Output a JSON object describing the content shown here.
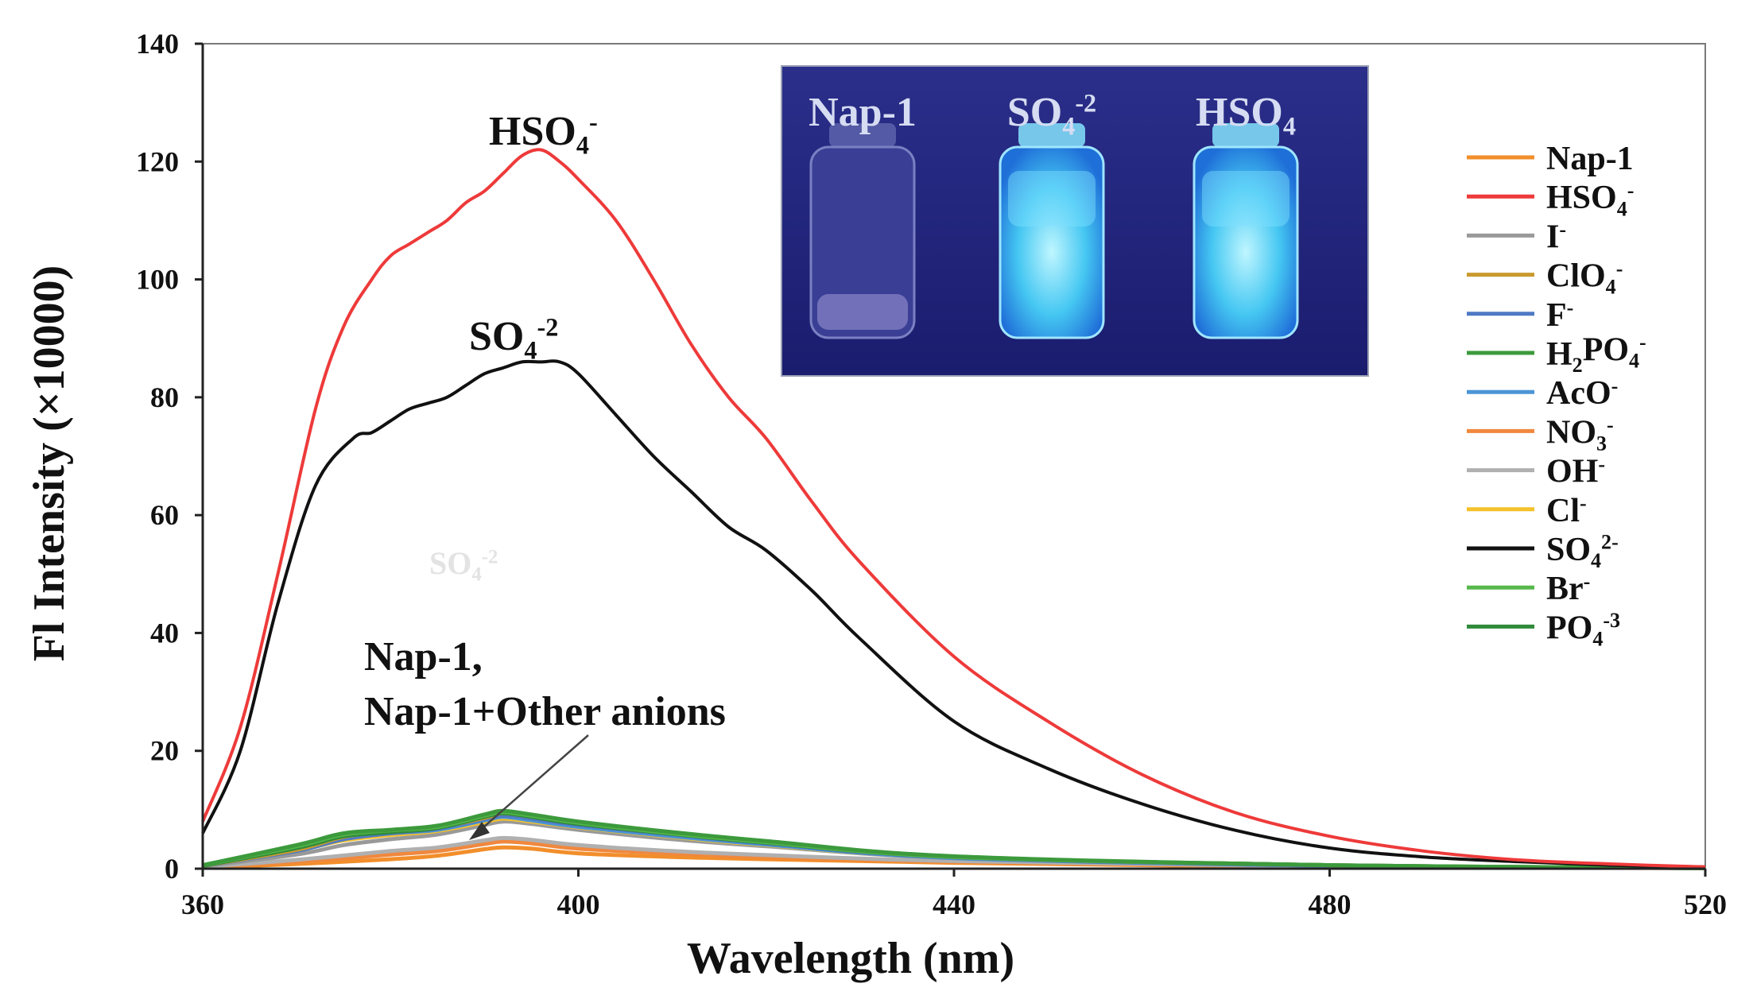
{
  "chart_data": {
    "type": "line",
    "title": "",
    "xlabel": "Wavelength (nm)",
    "ylabel": "Fl Intensity (×10000)",
    "xlim": [
      360,
      520
    ],
    "ylim": [
      0,
      140
    ],
    "xticks": [
      360,
      400,
      440,
      480,
      520
    ],
    "yticks": [
      0,
      20,
      40,
      60,
      80,
      100,
      120,
      140
    ],
    "series": [
      {
        "key": "nap1",
        "base": "Nap-1",
        "sub": "",
        "sup": "",
        "color": "#f28e2b",
        "x": [
          360,
          370,
          380,
          385,
          390,
          392,
          395,
          400,
          410,
          420,
          440,
          480,
          520
        ],
        "y": [
          0.2,
          0.8,
          1.6,
          2.2,
          3.3,
          3.6,
          3.4,
          2.6,
          2.0,
          1.6,
          1.0,
          0.3,
          0.1
        ]
      },
      {
        "key": "hso4",
        "base": "HSO",
        "sub": "4",
        "sup": "-",
        "color": "#ee3a3a",
        "x": [
          360,
          364,
          368,
          372,
          375,
          378,
          380,
          382,
          384,
          386,
          388,
          390,
          392,
          394,
          396,
          398,
          400,
          404,
          408,
          412,
          416,
          420,
          425,
          430,
          440,
          450,
          460,
          470,
          480,
          490,
          500,
          510,
          520
        ],
        "y": [
          8,
          24,
          50,
          78,
          92,
          100,
          104,
          106,
          108,
          110,
          113,
          115,
          118,
          121,
          122,
          120,
          117,
          110,
          100,
          89,
          80,
          73,
          62,
          52,
          36,
          25,
          16,
          9.5,
          5.5,
          3,
          1.5,
          0.8,
          0.3
        ]
      },
      {
        "key": "iodide",
        "base": "I",
        "sub": "",
        "sup": "-",
        "color": "#999999",
        "x": [
          360,
          370,
          375,
          380,
          385,
          390,
          392,
          395,
          400,
          410,
          420,
          440,
          480,
          520
        ],
        "y": [
          0.4,
          2.4,
          4.0,
          5.0,
          5.8,
          7.4,
          8.0,
          7.6,
          6.6,
          5.0,
          3.8,
          1.8,
          0.5,
          0.1
        ]
      },
      {
        "key": "clo4",
        "base": "ClO",
        "sub": "4",
        "sup": "-",
        "color": "#c99a2e",
        "x": [
          360,
          370,
          375,
          380,
          385,
          390,
          392,
          395,
          400,
          410,
          420,
          440,
          480,
          520
        ],
        "y": [
          0.5,
          3.2,
          5.4,
          6.3,
          7.0,
          8.6,
          9.4,
          8.8,
          7.7,
          6.1,
          4.5,
          2.0,
          0.6,
          0.1
        ]
      },
      {
        "key": "fluoride",
        "base": "F",
        "sub": "",
        "sup": "-",
        "color": "#4e79c4",
        "x": [
          360,
          370,
          375,
          380,
          385,
          390,
          392,
          395,
          400,
          410,
          420,
          440,
          480,
          520
        ],
        "y": [
          0.5,
          3.0,
          5.0,
          6.0,
          6.8,
          8.4,
          9.0,
          8.5,
          7.4,
          5.8,
          4.3,
          1.9,
          0.5,
          0.1
        ]
      },
      {
        "key": "h2po4",
        "base": "H",
        "sub": "2",
        "mid": "PO",
        "sub2": "4",
        "sup": "-",
        "color": "#3c9a3c",
        "x": [
          360,
          370,
          375,
          380,
          385,
          390,
          392,
          395,
          400,
          410,
          420,
          440,
          480,
          520
        ],
        "y": [
          0.6,
          4.0,
          6.0,
          6.6,
          7.3,
          9.2,
          9.8,
          9.2,
          8.0,
          6.2,
          4.7,
          2.1,
          0.6,
          0.1
        ]
      },
      {
        "key": "aco",
        "base": "AcO",
        "sub": "",
        "sup": "-",
        "color": "#4a95d6",
        "x": [
          360,
          370,
          375,
          380,
          385,
          390,
          392,
          395,
          400,
          410,
          420,
          440,
          480,
          520
        ],
        "y": [
          0.5,
          3.3,
          5.2,
          6.0,
          6.6,
          8.2,
          8.8,
          8.2,
          7.1,
          5.5,
          4.1,
          1.8,
          0.5,
          0.1
        ]
      },
      {
        "key": "no3",
        "base": "NO",
        "sub": "3",
        "sup": "-",
        "color": "#f0883e",
        "x": [
          360,
          370,
          380,
          385,
          390,
          392,
          395,
          400,
          410,
          420,
          440,
          480,
          520
        ],
        "y": [
          0.3,
          1.2,
          2.4,
          3.0,
          4.2,
          4.6,
          4.3,
          3.4,
          2.6,
          2.0,
          1.2,
          0.4,
          0.1
        ]
      },
      {
        "key": "oh",
        "base": "OH",
        "sub": "",
        "sup": "-",
        "color": "#b0b0b0",
        "x": [
          360,
          370,
          380,
          385,
          390,
          392,
          395,
          400,
          410,
          420,
          440,
          480,
          520
        ],
        "y": [
          0.3,
          1.5,
          3.0,
          3.6,
          4.8,
          5.2,
          4.9,
          4.0,
          3.0,
          2.3,
          1.3,
          0.4,
          0.1
        ]
      },
      {
        "key": "chloride",
        "base": "Cl",
        "sub": "",
        "sup": "-",
        "color": "#f5c12a",
        "x": [
          360,
          370,
          375,
          380,
          385,
          390,
          392,
          395,
          400,
          410,
          420,
          440,
          480,
          520
        ],
        "y": [
          0.5,
          3.1,
          4.8,
          5.7,
          6.4,
          7.9,
          8.5,
          8.0,
          7.0,
          5.4,
          4.0,
          1.8,
          0.5,
          0.1
        ]
      },
      {
        "key": "so4",
        "base": "SO",
        "sub": "4",
        "sup": "2-",
        "color": "#111111",
        "x": [
          360,
          364,
          368,
          372,
          376,
          378,
          380,
          382,
          384,
          386,
          388,
          390,
          392,
          394,
          396,
          398,
          400,
          404,
          408,
          412,
          416,
          420,
          425,
          430,
          440,
          450,
          460,
          470,
          480,
          490,
          500,
          510,
          520
        ],
        "y": [
          6,
          20,
          45,
          65,
          73,
          74,
          76,
          78,
          79,
          80,
          82,
          84,
          85,
          86,
          86,
          86,
          84,
          77,
          70,
          64,
          58,
          54,
          47,
          39,
          25,
          17,
          11,
          6.5,
          3.5,
          2,
          1.2,
          0.6,
          0.3
        ]
      },
      {
        "key": "bromide",
        "base": "Br",
        "sub": "",
        "sup": "-",
        "color": "#56b84a",
        "x": [
          360,
          370,
          375,
          380,
          385,
          390,
          392,
          395,
          400,
          410,
          420,
          440,
          480,
          520
        ],
        "y": [
          0.6,
          3.8,
          5.8,
          6.5,
          7.1,
          9.0,
          9.6,
          9.0,
          7.8,
          6.0,
          4.5,
          2.0,
          0.6,
          0.1
        ]
      },
      {
        "key": "po4",
        "base": "PO",
        "sub": "4",
        "sup": "-3",
        "color": "#2e8a3a",
        "x": [
          360,
          370,
          375,
          380,
          385,
          390,
          392,
          395,
          400,
          410,
          420,
          440,
          480,
          520
        ],
        "y": [
          0.5,
          3.5,
          5.5,
          6.2,
          6.9,
          8.8,
          9.4,
          8.8,
          7.6,
          5.9,
          4.4,
          2.0,
          0.6,
          0.1
        ]
      }
    ],
    "annotations": {
      "hso4_label": {
        "base": "HSO",
        "sub": "4",
        "sup": "-"
      },
      "so4_label": {
        "base": "SO",
        "sub": "4",
        "sup": "-2"
      },
      "group_line1": "Nap-1,",
      "group_line2": "Nap-1+Other anions",
      "ghost_label": {
        "base": "SO",
        "sub": "4",
        "sup": "-2"
      }
    },
    "inset": {
      "labels": [
        {
          "key": "nap1",
          "base": "Nap-1",
          "sub": "",
          "sup": ""
        },
        {
          "key": "so4",
          "base": "SO",
          "sub": "4",
          "sup": "-2"
        },
        {
          "key": "hso4",
          "base": "HSO",
          "sub": "4",
          "sup": ""
        }
      ]
    }
  }
}
